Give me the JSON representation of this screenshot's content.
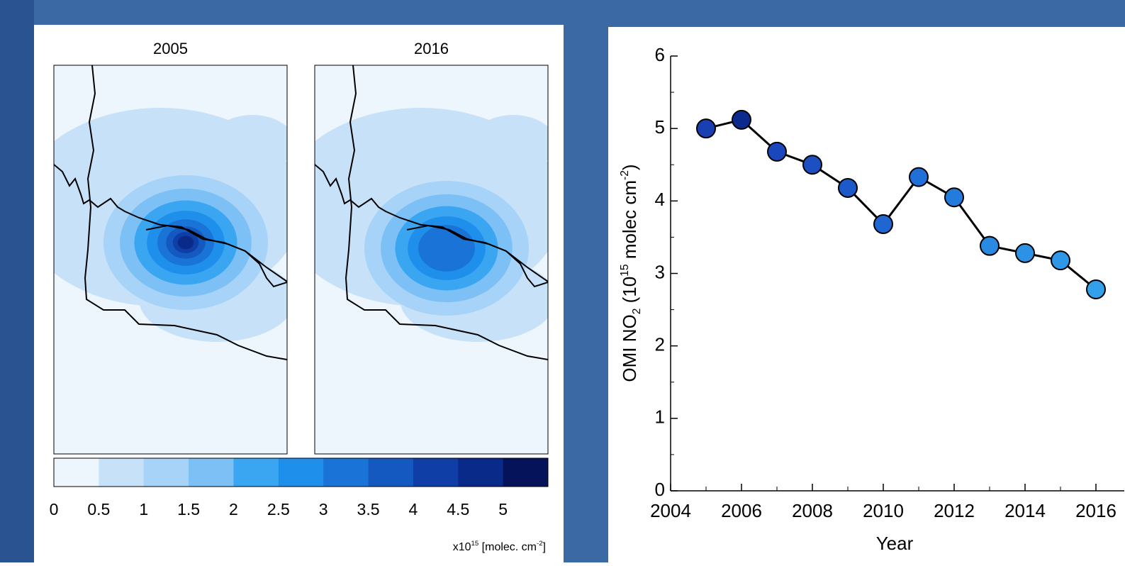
{
  "maps": {
    "panels": [
      {
        "title": "2005",
        "levels": 9
      },
      {
        "title": "2016",
        "levels": 6
      }
    ],
    "colorbar": {
      "ticks": [
        0,
        0.5,
        1,
        1.5,
        2,
        2.5,
        3,
        3.5,
        4,
        4.5,
        5
      ],
      "colors": [
        "#eef6fd",
        "#c7e2f8",
        "#a6d3f7",
        "#7dc0f5",
        "#3aa6f2",
        "#1e90ec",
        "#1a73d6",
        "#1459c0",
        "#0f3fa6",
        "#0a2a8a",
        "#04135a"
      ],
      "unit": [
        "x10",
        "15",
        " [molec. cm",
        "-2",
        "]"
      ]
    }
  },
  "chart_data": {
    "type": "line",
    "ylabel": [
      "OMI NO",
      "2",
      " (10",
      "15",
      " molec cm",
      "-2",
      ")"
    ],
    "xlabel": "Year",
    "x": [
      2005,
      2006,
      2007,
      2008,
      2009,
      2010,
      2011,
      2012,
      2013,
      2014,
      2015,
      2016
    ],
    "values": [
      5.0,
      5.12,
      4.68,
      4.5,
      4.18,
      3.68,
      4.33,
      4.05,
      3.38,
      3.28,
      3.18,
      2.78
    ],
    "marker_colors": [
      "#1a3fb0",
      "#0c2a8e",
      "#1a47bb",
      "#1b4fc2",
      "#1c5ac9",
      "#1f66d2",
      "#2070d8",
      "#237bdc",
      "#2a8ae2",
      "#2d91e5",
      "#2f97e8",
      "#33a0ec"
    ],
    "color": "#000000",
    "xlim": [
      2004,
      2016.8
    ],
    "xticks": [
      2004,
      2006,
      2008,
      2010,
      2012,
      2014,
      2016
    ],
    "ylim": [
      0,
      6
    ],
    "yticks": [
      0,
      1,
      2,
      3,
      4,
      5,
      6
    ]
  }
}
